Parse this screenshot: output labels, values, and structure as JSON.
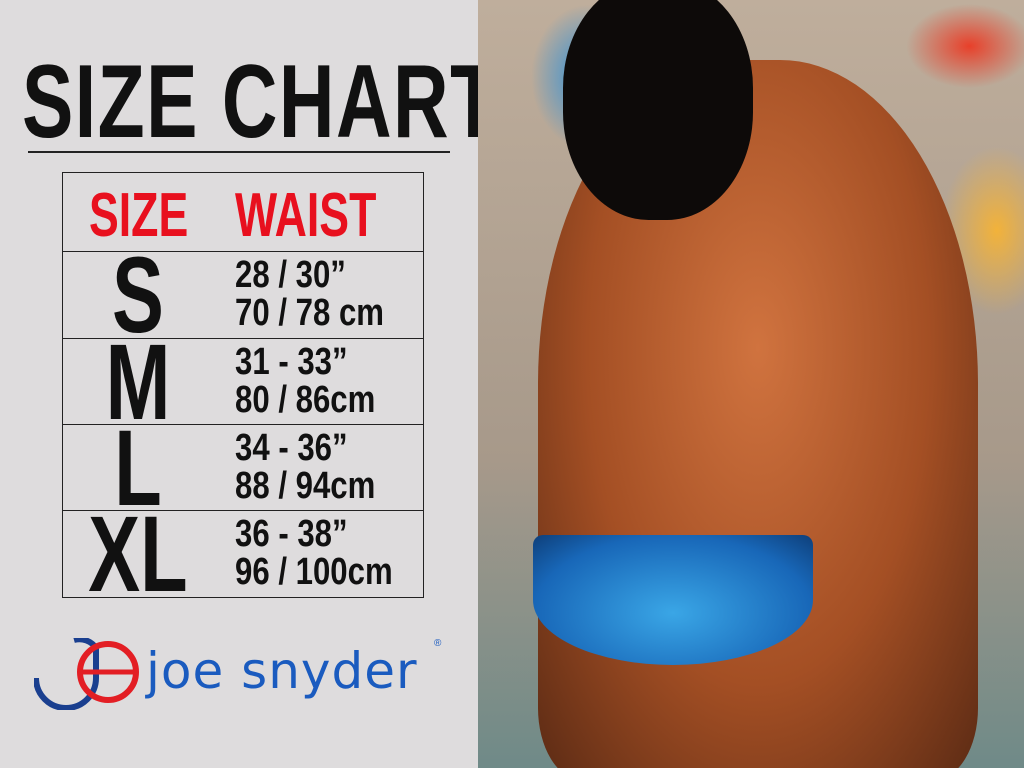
{
  "title": "SIZE CHART",
  "table": {
    "headers": {
      "size": "SIZE",
      "waist": "WAIST"
    },
    "rows": [
      {
        "size": "S",
        "inches": "28 / 30”",
        "cm": "70 / 78 cm"
      },
      {
        "size": "M",
        "inches": "31 - 33”",
        "cm": "80 / 86cm"
      },
      {
        "size": "L",
        "inches": "34 - 36”",
        "cm": "88 / 94cm"
      },
      {
        "size": "XL",
        "inches": "36 - 38”",
        "cm": "96 / 100cm"
      }
    ]
  },
  "brand": {
    "name": "joe snyder",
    "registered": "®"
  },
  "colors": {
    "header": "#e8101e",
    "brand_blue": "#1a5bbf",
    "brand_red": "#e31e24",
    "background": "#dedcdd"
  }
}
